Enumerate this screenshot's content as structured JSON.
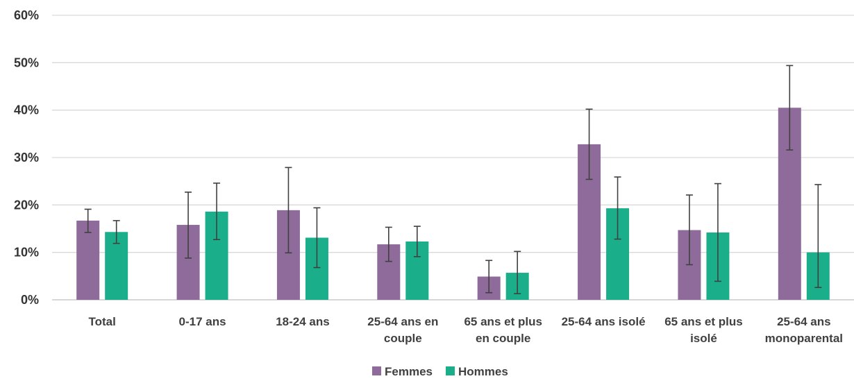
{
  "chart_data": {
    "type": "bar",
    "title": "",
    "xlabel": "",
    "ylabel": "",
    "ylim": [
      0,
      60
    ],
    "yticks": [
      "0%",
      "10%",
      "20%",
      "30%",
      "40%",
      "50%",
      "60%"
    ],
    "grid": true,
    "legend_position": "bottom",
    "categories": [
      [
        "Total"
      ],
      [
        "0-17 ans"
      ],
      [
        "18-24 ans"
      ],
      [
        "25-64 ans en",
        "couple"
      ],
      [
        "65 ans et plus",
        "en couple"
      ],
      [
        "25-64 ans isolé"
      ],
      [
        "65 ans et plus",
        "isolé"
      ],
      [
        "25-64 ans",
        "monoparental"
      ]
    ],
    "series": [
      {
        "name": "Femmes",
        "color": "#8e6b9a",
        "values": [
          16.7,
          15.8,
          18.9,
          11.7,
          4.9,
          32.8,
          14.7,
          40.5
        ],
        "error_low": [
          14.2,
          8.8,
          9.9,
          8.1,
          1.5,
          25.4,
          7.4,
          31.6
        ],
        "error_high": [
          19.1,
          22.7,
          27.9,
          15.3,
          8.3,
          40.2,
          22.1,
          49.4
        ]
      },
      {
        "name": "Hommes",
        "color": "#1aaf8a",
        "values": [
          14.3,
          18.6,
          13.1,
          12.3,
          5.7,
          19.3,
          14.2,
          10.0
        ],
        "error_low": [
          11.9,
          12.7,
          6.8,
          9.1,
          1.3,
          12.8,
          3.9,
          2.6
        ],
        "error_high": [
          16.7,
          24.6,
          19.4,
          15.5,
          10.2,
          25.9,
          24.5,
          24.3
        ]
      }
    ]
  }
}
